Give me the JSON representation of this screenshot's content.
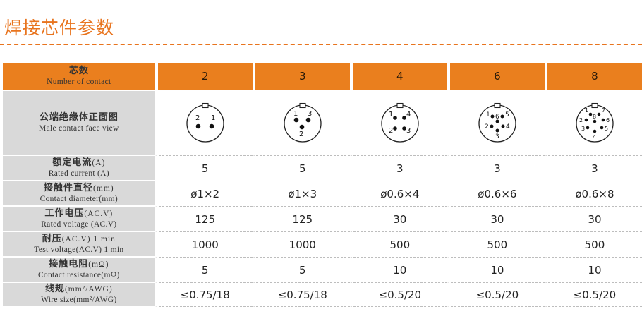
{
  "title": "焊接芯件参数",
  "headers": {
    "zh": "芯数",
    "en": "Number of contact",
    "columns": [
      "2",
      "3",
      "4",
      "6",
      "8"
    ]
  },
  "face_row": {
    "zh": "公端绝缘体正面图",
    "en": "Male contact face view",
    "diagrams": [
      {
        "pins": [
          "2",
          "1"
        ]
      },
      {
        "pins": [
          "1",
          "3",
          "2"
        ]
      },
      {
        "pins": [
          "1",
          "4",
          "2",
          "3"
        ]
      },
      {
        "pins": [
          "1",
          "5",
          "6",
          "2",
          "4",
          "3"
        ]
      },
      {
        "pins": [
          "1",
          "7",
          "2",
          "8",
          "6",
          "3",
          "5",
          "4"
        ]
      }
    ]
  },
  "rows": [
    {
      "zh": "额定电流",
      "zh_unit": "(A)",
      "en": "Rated current (A)",
      "values": [
        "5",
        "5",
        "3",
        "3",
        "3"
      ]
    },
    {
      "zh": "接触件直径",
      "zh_unit": "(mm)",
      "en": "Contact diameter(mm)",
      "values": [
        "ø1×2",
        "ø1×3",
        "ø0.6×4",
        "ø0.6×6",
        "ø0.6×8"
      ]
    },
    {
      "zh": "工作电压",
      "zh_unit": "(AC.V)",
      "en": "Rated voltage (AC.V)",
      "values": [
        "125",
        "125",
        "30",
        "30",
        "30"
      ]
    },
    {
      "zh": "耐压",
      "zh_unit": "(AC.V) 1 min",
      "en": "Test voltage(AC.V) 1 min",
      "values": [
        "1000",
        "1000",
        "500",
        "500",
        "500"
      ]
    },
    {
      "zh": "接触电阻",
      "zh_unit": "(mΩ)",
      "en": "Contact resistance(mΩ)",
      "values": [
        "5",
        "5",
        "10",
        "10",
        "10"
      ]
    },
    {
      "zh": "线规",
      "zh_unit": "(mm²/AWG)",
      "en": "Wire size(mm²/AWG)",
      "values": [
        "≤0.75/18",
        "≤0.75/18",
        "≤0.5/20",
        "≤0.5/20",
        "≤0.5/20"
      ]
    }
  ],
  "colors": {
    "accent": "#ea7f1e",
    "label_bg": "#d9d9d9"
  }
}
